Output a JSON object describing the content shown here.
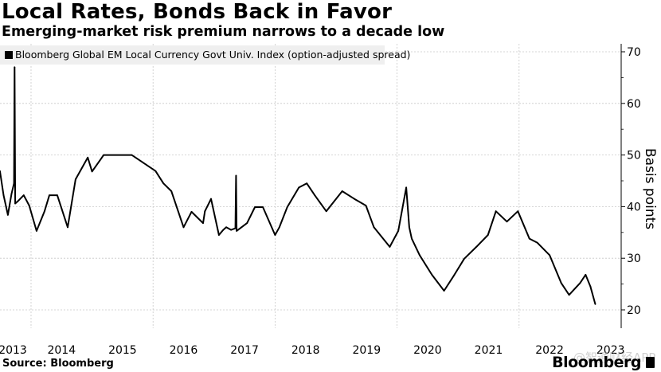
{
  "header": {
    "title": "Local Rates, Bonds Back in Favor",
    "subtitle": "Emerging-market risk premium narrows to a decade low"
  },
  "footer": {
    "source": "Source: Bloomberg",
    "logo": "Bloomberg",
    "watermark": "@智通财经APP"
  },
  "chart_data": {
    "type": "line",
    "title": "Local Rates, Bonds Back in Favor",
    "subtitle": "Emerging-market risk premium narrows to a decade low",
    "xlabel": "",
    "ylabel": "Basis points",
    "y_axis_side": "right",
    "ylim": [
      18,
      71
    ],
    "xlim": [
      2013.5,
      2023.25
    ],
    "yticks": [
      20,
      30,
      40,
      50,
      60,
      70
    ],
    "xtick_labels": [
      "2013",
      "2014",
      "2015",
      "2016",
      "2017",
      "2018",
      "2019",
      "2020",
      "2021",
      "2022",
      "2023"
    ],
    "grid": true,
    "legend_position": "top-left",
    "series": [
      {
        "name": "Bloomberg Global EM Local Currency Govt Univ. Index (option-adjusted spread)",
        "color": "#000000",
        "x": [
          2013.49,
          2013.55,
          2013.62,
          2013.68,
          2013.72,
          2013.73,
          2013.74,
          2013.78,
          2013.88,
          2013.97,
          2014.09,
          2014.22,
          2014.3,
          2014.43,
          2014.6,
          2014.73,
          2014.93,
          2015.0,
          2015.19,
          2015.65,
          2015.84,
          2016.04,
          2016.17,
          2016.3,
          2016.5,
          2016.63,
          2016.82,
          2016.85,
          2016.95,
          2017.08,
          2017.15,
          2017.2,
          2017.28,
          2017.35,
          2017.36,
          2017.37,
          2017.54,
          2017.67,
          2017.8,
          2018.0,
          2018.07,
          2018.2,
          2018.39,
          2018.52,
          2018.65,
          2018.84,
          2019.1,
          2019.3,
          2019.49,
          2019.62,
          2019.88,
          2020.02,
          2020.15,
          2020.2,
          2020.24,
          2020.37,
          2020.57,
          2020.77,
          2020.94,
          2021.1,
          2021.3,
          2021.49,
          2021.62,
          2021.8,
          2021.98,
          2022.17,
          2022.3,
          2022.5,
          2022.69,
          2022.82,
          2023.0,
          2023.09,
          2023.17,
          2023.25
        ],
        "values": [
          46.9,
          42.2,
          38.4,
          42.5,
          44.5,
          67.0,
          40.6,
          41.0,
          42.2,
          40.2,
          35.3,
          39.1,
          42.2,
          42.2,
          36.0,
          45.3,
          49.5,
          46.8,
          50.0,
          50.0,
          48.5,
          46.9,
          44.5,
          43.0,
          36.0,
          39.0,
          36.8,
          39.1,
          41.5,
          34.5,
          35.5,
          36.0,
          35.5,
          35.8,
          46.0,
          35.3,
          36.8,
          39.9,
          39.9,
          34.5,
          36.0,
          39.9,
          43.7,
          44.5,
          42.2,
          39.1,
          43.0,
          41.5,
          40.2,
          36.0,
          32.2,
          35.3,
          43.7,
          36.0,
          33.8,
          30.6,
          26.8,
          23.7,
          26.8,
          29.9,
          32.2,
          34.5,
          39.1,
          37.1,
          39.1,
          33.8,
          33.0,
          30.6,
          25.2,
          22.9,
          25.2,
          26.8,
          24.5,
          21.1
        ]
      }
    ]
  }
}
